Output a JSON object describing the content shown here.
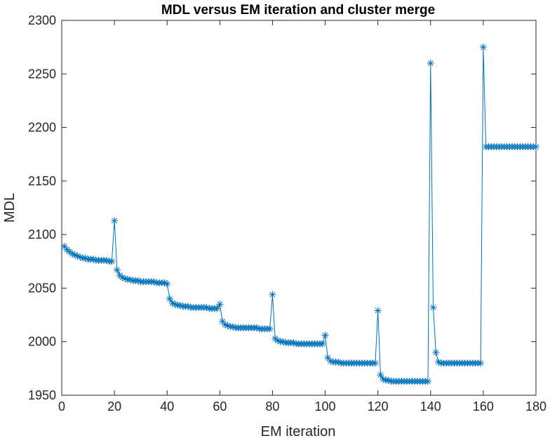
{
  "chart_data": {
    "type": "line",
    "title": "MDL versus EM iteration and cluster merge",
    "xlabel": "EM iteration",
    "ylabel": "MDL",
    "xlim": [
      0,
      180
    ],
    "ylim": [
      1950,
      2300
    ],
    "xticks": [
      0,
      20,
      40,
      60,
      80,
      100,
      120,
      140,
      160,
      180
    ],
    "yticks": [
      1950,
      2000,
      2050,
      2100,
      2150,
      2200,
      2250,
      2300
    ],
    "marker": "asterisk",
    "line_color": "#0072bd",
    "grid": false,
    "series": [
      {
        "x": [
          1,
          2,
          3,
          4,
          5,
          6,
          7,
          8,
          9,
          10,
          11,
          12,
          13,
          14,
          15,
          16,
          17,
          18,
          19,
          20,
          21,
          22,
          23,
          24,
          25,
          26,
          27,
          28,
          29,
          30,
          31,
          32,
          33,
          34,
          35,
          36,
          37,
          38,
          39,
          40,
          41,
          42,
          43,
          44,
          45,
          46,
          47,
          48,
          49,
          50,
          51,
          52,
          53,
          54,
          55,
          56,
          57,
          58,
          59,
          60,
          61,
          62,
          63,
          64,
          65,
          66,
          67,
          68,
          69,
          70,
          71,
          72,
          73,
          74,
          75,
          76,
          77,
          78,
          79,
          80,
          81,
          82,
          83,
          84,
          85,
          86,
          87,
          88,
          89,
          90,
          91,
          92,
          93,
          94,
          95,
          96,
          97,
          98,
          99,
          100,
          101,
          102,
          103,
          104,
          105,
          106,
          107,
          108,
          109,
          110,
          111,
          112,
          113,
          114,
          115,
          116,
          117,
          118,
          119,
          120,
          121,
          122,
          123,
          124,
          125,
          126,
          127,
          128,
          129,
          130,
          131,
          132,
          133,
          134,
          135,
          136,
          137,
          138,
          139,
          140,
          141,
          142,
          143,
          144,
          145,
          146,
          147,
          148,
          149,
          150,
          151,
          152,
          153,
          154,
          155,
          156,
          157,
          158,
          159,
          160,
          161,
          162,
          163,
          164,
          165,
          166,
          167,
          168,
          169,
          170,
          171,
          172,
          173,
          174,
          175,
          176,
          177,
          178,
          179,
          180
        ],
        "y": [
          2089,
          2086,
          2084,
          2082,
          2081,
          2080,
          2079,
          2078,
          2078,
          2077,
          2077,
          2077,
          2076,
          2076,
          2076,
          2076,
          2076,
          2075,
          2075,
          2113,
          2067,
          2062,
          2060,
          2059,
          2058,
          2058,
          2057,
          2057,
          2057,
          2056,
          2056,
          2056,
          2056,
          2056,
          2056,
          2055,
          2055,
          2055,
          2055,
          2054,
          2040,
          2036,
          2035,
          2034,
          2034,
          2033,
          2033,
          2033,
          2032,
          2032,
          2032,
          2032,
          2032,
          2032,
          2032,
          2031,
          2031,
          2031,
          2031,
          2035,
          2019,
          2016,
          2015,
          2014,
          2014,
          2013,
          2013,
          2013,
          2013,
          2013,
          2013,
          2013,
          2013,
          2013,
          2012,
          2012,
          2012,
          2012,
          2012,
          2044,
          2003,
          2001,
          2000,
          2000,
          1999,
          1999,
          1999,
          1999,
          1998,
          1998,
          1998,
          1998,
          1998,
          1998,
          1998,
          1998,
          1998,
          1998,
          1998,
          2006,
          1985,
          1982,
          1981,
          1981,
          1981,
          1980,
          1980,
          1980,
          1980,
          1980,
          1980,
          1980,
          1980,
          1980,
          1980,
          1980,
          1980,
          1980,
          1980,
          2029,
          1969,
          1965,
          1964,
          1964,
          1963,
          1963,
          1963,
          1963,
          1963,
          1963,
          1963,
          1963,
          1963,
          1963,
          1963,
          1963,
          1963,
          1963,
          1963,
          2260,
          2032,
          1990,
          1981,
          1980,
          1980,
          1980,
          1980,
          1980,
          1980,
          1980,
          1980,
          1980,
          1980,
          1980,
          1980,
          1980,
          1980,
          1980,
          1980,
          2275,
          2182,
          2182,
          2182,
          2182,
          2182,
          2182,
          2182,
          2182,
          2182,
          2182,
          2182,
          2182,
          2182,
          2182,
          2182,
          2182,
          2182,
          2182,
          2182,
          2182
        ]
      }
    ]
  }
}
